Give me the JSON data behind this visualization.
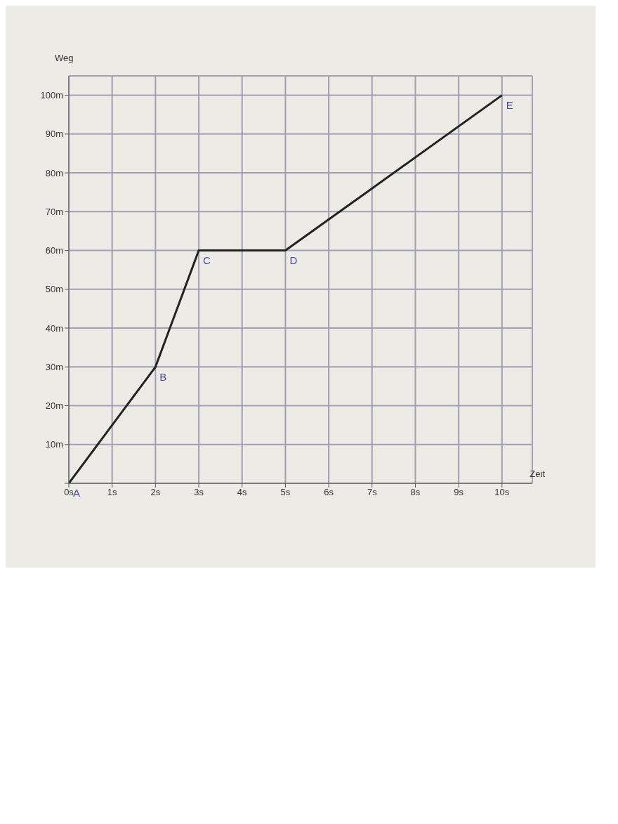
{
  "chart_data": {
    "type": "line",
    "xlabel": "Zeit",
    "ylabel": "Weg",
    "x": [
      0,
      2,
      3,
      5,
      10
    ],
    "series": [
      {
        "color": "#222222",
        "values": [
          0,
          30,
          60,
          60,
          100
        ]
      }
    ],
    "xlim": [
      0,
      10.7
    ],
    "ylim": [
      0,
      105
    ],
    "xticks": [
      {
        "value": 0,
        "label": "0s"
      },
      {
        "value": 1,
        "label": "1s"
      },
      {
        "value": 2,
        "label": "2s"
      },
      {
        "value": 3,
        "label": "3s"
      },
      {
        "value": 4,
        "label": "4s"
      },
      {
        "value": 5,
        "label": "5s"
      },
      {
        "value": 6,
        "label": "6s"
      },
      {
        "value": 7,
        "label": "7s"
      },
      {
        "value": 8,
        "label": "8s"
      },
      {
        "value": 9,
        "label": "9s"
      },
      {
        "value": 10,
        "label": "10s"
      }
    ],
    "yticks": [
      {
        "value": 0,
        "label": null
      },
      {
        "value": 10,
        "label": "10m"
      },
      {
        "value": 20,
        "label": "20m"
      },
      {
        "value": 30,
        "label": "30m"
      },
      {
        "value": 40,
        "label": "40m"
      },
      {
        "value": 50,
        "label": "50m"
      },
      {
        "value": 60,
        "label": "60m"
      },
      {
        "value": 70,
        "label": "70m"
      },
      {
        "value": 80,
        "label": "80m"
      },
      {
        "value": 90,
        "label": "90m"
      },
      {
        "value": 100,
        "label": "100m"
      }
    ],
    "grid": true,
    "marker": "none",
    "line_style": "solid",
    "annotations": [
      {
        "text": "A",
        "x": 0,
        "y": 0
      },
      {
        "text": "B",
        "x": 2,
        "y": 30
      },
      {
        "text": "C",
        "x": 3,
        "y": 60
      },
      {
        "text": "D",
        "x": 5,
        "y": 60
      },
      {
        "text": "E",
        "x": 10,
        "y": 100
      }
    ]
  }
}
